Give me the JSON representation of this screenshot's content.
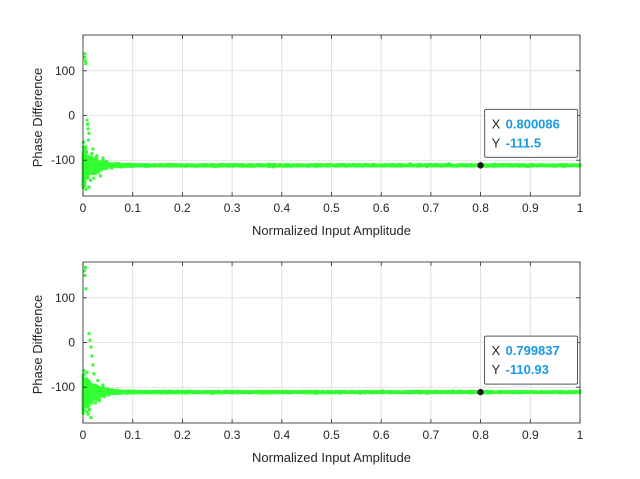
{
  "chart_data": [
    {
      "type": "scatter",
      "xlabel": "Normalized Input Amplitude",
      "ylabel": "Phase Difference",
      "xlim": [
        0,
        1
      ],
      "ylim": [
        -180,
        180
      ],
      "x_ticks": [
        "0",
        "0.1",
        "0.2",
        "0.3",
        "0.4",
        "0.5",
        "0.6",
        "0.7",
        "0.8",
        "0.9",
        "1"
      ],
      "y_ticks": [
        "100",
        "0",
        "-100"
      ],
      "grid": true,
      "series_color": "#33ff33",
      "steady_value": -111.5,
      "datatip": {
        "x_label": "X",
        "x_value": "0.800086",
        "y_label": "Y",
        "y_value": "-111.5",
        "x": 0.800086,
        "y": -111.5
      },
      "points": [
        [
          0.003,
          130
        ],
        [
          0.004,
          138
        ],
        [
          0.005,
          122
        ],
        [
          0.006,
          116
        ],
        [
          0.008,
          -10
        ],
        [
          0.009,
          -20
        ],
        [
          0.01,
          -30
        ],
        [
          0.012,
          -40
        ],
        [
          0.011,
          -55
        ],
        [
          0.004,
          -150
        ],
        [
          0.006,
          -165
        ],
        [
          0.008,
          -140
        ],
        [
          0.012,
          -160
        ],
        [
          0.015,
          -145
        ],
        [
          0.02,
          -75
        ],
        [
          0.018,
          -85
        ],
        [
          0.022,
          -140
        ],
        [
          0.025,
          -130
        ],
        [
          0.028,
          -90
        ],
        [
          0.035,
          -135
        ],
        [
          0.04,
          -95
        ]
      ]
    },
    {
      "type": "scatter",
      "xlabel": "Normalized Input Amplitude",
      "ylabel": "Phase Difference",
      "xlim": [
        0,
        1
      ],
      "ylim": [
        -180,
        180
      ],
      "x_ticks": [
        "0",
        "0.1",
        "0.2",
        "0.3",
        "0.4",
        "0.5",
        "0.6",
        "0.7",
        "0.8",
        "0.9",
        "1"
      ],
      "y_ticks": [
        "100",
        "0",
        "-100"
      ],
      "grid": true,
      "series_color": "#33ff33",
      "steady_value": -110.93,
      "datatip": {
        "x_label": "X",
        "x_value": "0.799837",
        "y_label": "Y",
        "y_value": "-110.93",
        "x": 0.799837,
        "y": -110.93
      },
      "points": [
        [
          0.003,
          160
        ],
        [
          0.005,
          168
        ],
        [
          0.004,
          150
        ],
        [
          0.006,
          120
        ],
        [
          0.012,
          20
        ],
        [
          0.014,
          5
        ],
        [
          0.016,
          -10
        ],
        [
          0.018,
          -30
        ],
        [
          0.02,
          -50
        ],
        [
          0.005,
          -140
        ],
        [
          0.008,
          -155
        ],
        [
          0.01,
          -160
        ],
        [
          0.013,
          -150
        ],
        [
          0.016,
          -168
        ],
        [
          0.022,
          -70
        ],
        [
          0.025,
          -135
        ],
        [
          0.03,
          -85
        ],
        [
          0.033,
          -130
        ],
        [
          0.04,
          -95
        ]
      ]
    }
  ]
}
